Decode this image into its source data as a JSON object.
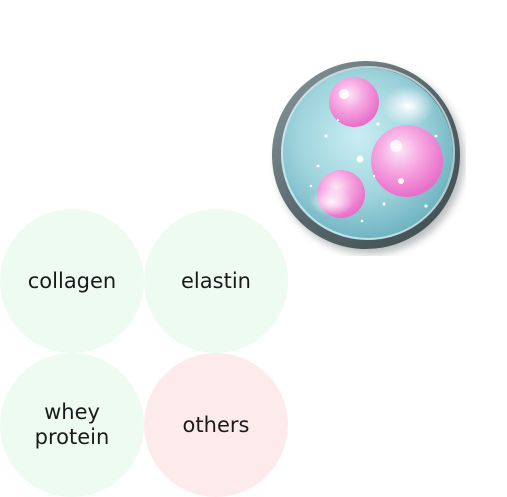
{
  "illustration": {
    "icon": "collagen-sphere-icon",
    "colors": {
      "shell": "#9fd3dc",
      "rim": "#5f6f73",
      "bubble": "#f48fd7"
    }
  },
  "colors": {
    "option_green": "#eefbf1",
    "option_pink": "#fdebec"
  },
  "options": [
    {
      "label": "collagen"
    },
    {
      "label": "elastin"
    },
    {
      "label": "whey protein"
    },
    {
      "label": "others"
    }
  ]
}
